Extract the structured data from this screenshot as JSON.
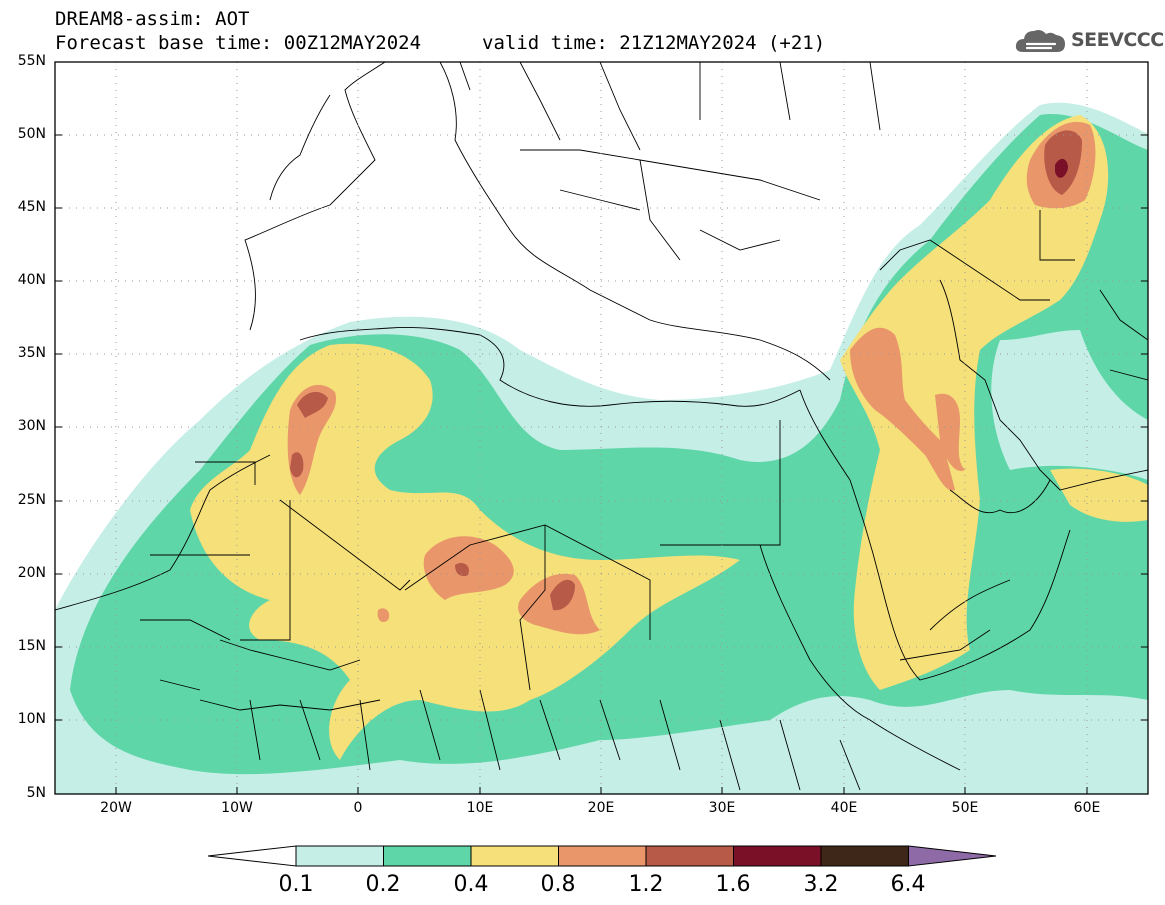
{
  "header": {
    "title": "DREAM8-assim: AOT",
    "base_time": "Forecast base time: 00Z12MAY2024",
    "valid_time": "valid time: 21Z12MAY2024 (+21)"
  },
  "logo": {
    "text": "SEEVCCC",
    "icon": "cloud-icon"
  },
  "map": {
    "lat_labels": [
      "55N",
      "50N",
      "45N",
      "40N",
      "35N",
      "30N",
      "25N",
      "20N",
      "15N",
      "10N",
      "5N"
    ],
    "lon_labels": [
      "20W",
      "10W",
      "0",
      "10E",
      "20E",
      "30E",
      "40E",
      "50E",
      "60E"
    ],
    "lat_range": [
      5,
      55
    ],
    "lon_range": [
      -25,
      65
    ],
    "grid": true
  },
  "colorbar": {
    "labels": [
      "0.1",
      "0.2",
      "0.4",
      "0.8",
      "1.2",
      "1.6",
      "3.2",
      "6.4"
    ],
    "colors": [
      "#ffffff",
      "#c4eee6",
      "#5fd6a8",
      "#f5e07a",
      "#e8966a",
      "#b85a48",
      "#7a1028",
      "#3e2618",
      "#8e6aa6"
    ]
  },
  "levels": {
    "aot_0_1": "#c4eee6",
    "aot_0_2": "#5fd6a8",
    "aot_0_4": "#f5e07a",
    "aot_0_8": "#e8966a",
    "aot_1_2": "#b85a48",
    "aot_1_6": "#7a1028"
  }
}
